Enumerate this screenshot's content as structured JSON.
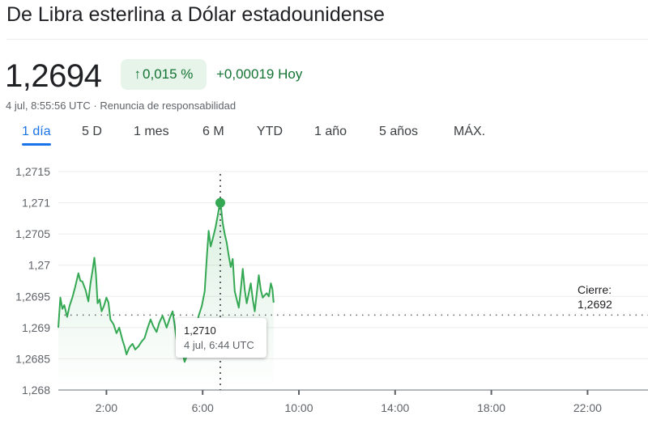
{
  "header": {
    "title": "De Libra esterlina a Dólar estadounidense"
  },
  "quote": {
    "price": "1,2694",
    "change_pct": "0,015 %",
    "change_abs": "+0,00019 Hoy",
    "arrow_icon": "arrow-up-icon",
    "timestamp": "4 jul, 8:55:56 UTC",
    "separator": "·",
    "disclaimer": "Renuncia de responsabilidad"
  },
  "tabs": [
    {
      "label": "1 día",
      "active": true
    },
    {
      "label": "5 D"
    },
    {
      "label": "1 mes"
    },
    {
      "label": "6 M"
    },
    {
      "label": "YTD"
    },
    {
      "label": "1 año"
    },
    {
      "label": "5 años"
    },
    {
      "label": "MÁX."
    }
  ],
  "colors": {
    "line": "#34a853",
    "up": "#137333",
    "accent": "#1a73e8"
  },
  "tooltip": {
    "value": "1,2710",
    "time": "4 jul, 6:44 UTC"
  },
  "close_label": {
    "label": "Cierre:",
    "value": "1,2692"
  },
  "chart_data": {
    "type": "line",
    "ylim": [
      1.268,
      1.2715
    ],
    "y_ticks": [
      "1,2715",
      "1,271",
      "1,2705",
      "1,27",
      "1,2695",
      "1,269",
      "1,2685",
      "1,268"
    ],
    "y_tick_values": [
      1.2715,
      1.271,
      1.2705,
      1.27,
      1.2695,
      1.269,
      1.2685,
      1.268
    ],
    "x_ticks": [
      "2:00",
      "6:00",
      "10:00",
      "14:00",
      "18:00",
      "22:00"
    ],
    "xlim": [
      "0:00",
      "24:00"
    ],
    "previous_close": 1.2692,
    "highlight": {
      "x": "6:44",
      "y": 1.271
    },
    "grid": true,
    "points": [
      [
        "0:00",
        1.269
      ],
      [
        "0:05",
        1.26948
      ],
      [
        "0:10",
        1.2693
      ],
      [
        "0:15",
        1.26936
      ],
      [
        "0:22",
        1.26917
      ],
      [
        "0:28",
        1.26935
      ],
      [
        "0:35",
        1.26948
      ],
      [
        "0:42",
        1.26965
      ],
      [
        "0:50",
        1.26987
      ],
      [
        "0:55",
        1.26975
      ],
      [
        "1:00",
        1.26974
      ],
      [
        "1:08",
        1.2696
      ],
      [
        "1:15",
        1.26942
      ],
      [
        "1:20",
        1.2697
      ],
      [
        "1:25",
        1.2699
      ],
      [
        "1:30",
        1.27012
      ],
      [
        "1:34",
        1.26985
      ],
      [
        "1:38",
        1.26939
      ],
      [
        "1:43",
        1.26945
      ],
      [
        "1:48",
        1.26926
      ],
      [
        "1:54",
        1.26935
      ],
      [
        "2:00",
        1.26948
      ],
      [
        "2:05",
        1.2694
      ],
      [
        "2:10",
        1.26913
      ],
      [
        "2:18",
        1.26905
      ],
      [
        "2:25",
        1.26891
      ],
      [
        "2:32",
        1.269
      ],
      [
        "2:40",
        1.2688
      ],
      [
        "2:45",
        1.2687
      ],
      [
        "2:50",
        1.26857
      ],
      [
        "2:57",
        1.26868
      ],
      [
        "3:05",
        1.26874
      ],
      [
        "3:12",
        1.26865
      ],
      [
        "3:20",
        1.2687
      ],
      [
        "3:28",
        1.26878
      ],
      [
        "3:35",
        1.26883
      ],
      [
        "3:43",
        1.269
      ],
      [
        "3:50",
        1.26913
      ],
      [
        "3:57",
        1.26902
      ],
      [
        "4:05",
        1.26893
      ],
      [
        "4:12",
        1.26908
      ],
      [
        "4:20",
        1.26919
      ],
      [
        "4:25",
        1.2691
      ],
      [
        "4:30",
        1.269
      ],
      [
        "4:38",
        1.26915
      ],
      [
        "4:45",
        1.26926
      ],
      [
        "4:50",
        1.26905
      ],
      [
        "4:55",
        1.2688
      ],
      [
        "5:00",
        1.26895
      ],
      [
        "5:05",
        1.26891
      ],
      [
        "5:10",
        1.2686
      ],
      [
        "5:15",
        1.26845
      ],
      [
        "5:22",
        1.26858
      ],
      [
        "5:30",
        1.26867
      ],
      [
        "5:40",
        1.2689
      ],
      [
        "5:50",
        1.26919
      ],
      [
        "5:58",
        1.26935
      ],
      [
        "6:05",
        1.26958
      ],
      [
        "6:10",
        1.2701
      ],
      [
        "6:15",
        1.27055
      ],
      [
        "6:20",
        1.2703
      ],
      [
        "6:25",
        1.27042
      ],
      [
        "6:32",
        1.2706
      ],
      [
        "6:38",
        1.27081
      ],
      [
        "6:44",
        1.27103
      ],
      [
        "6:47",
        1.27085
      ],
      [
        "6:50",
        1.27068
      ],
      [
        "6:55",
        1.2705
      ],
      [
        "7:00",
        1.27036
      ],
      [
        "7:05",
        1.27015
      ],
      [
        "7:10",
        1.26997
      ],
      [
        "7:15",
        1.2701
      ],
      [
        "7:20",
        1.26958
      ],
      [
        "7:25",
        1.26945
      ],
      [
        "7:30",
        1.26932
      ],
      [
        "7:35",
        1.2696
      ],
      [
        "7:40",
        1.26994
      ],
      [
        "7:45",
        1.2696
      ],
      [
        "7:50",
        1.26939
      ],
      [
        "7:55",
        1.26955
      ],
      [
        "8:00",
        1.26971
      ],
      [
        "8:05",
        1.26945
      ],
      [
        "8:10",
        1.26926
      ],
      [
        "8:15",
        1.26955
      ],
      [
        "8:20",
        1.26984
      ],
      [
        "8:25",
        1.2696
      ],
      [
        "8:30",
        1.26948
      ],
      [
        "8:35",
        1.26952
      ],
      [
        "8:40",
        1.26955
      ],
      [
        "8:45",
        1.2695
      ],
      [
        "8:50",
        1.26971
      ],
      [
        "8:54",
        1.26962
      ],
      [
        "8:57",
        1.2694
      ]
    ]
  }
}
